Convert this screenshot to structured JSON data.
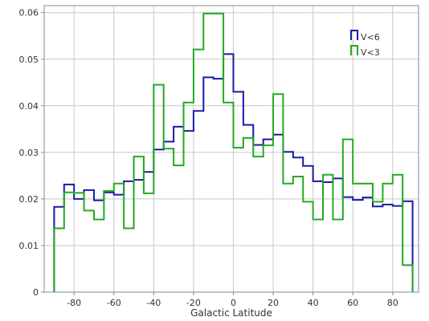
{
  "chart_data": {
    "type": "line",
    "step": "histogram",
    "xlabel": "Galactic Latitude",
    "ylabel": "",
    "xlim": [
      -95,
      93
    ],
    "ylim": [
      0,
      0.0615
    ],
    "xticks": [
      -80,
      -60,
      -40,
      -20,
      0,
      20,
      40,
      60,
      80
    ],
    "yticks": [
      0,
      0.01,
      0.02,
      0.03,
      0.04,
      0.05,
      0.06
    ],
    "xtick_labels": [
      "-80",
      "-60",
      "-40",
      "-20",
      "0",
      "20",
      "40",
      "60",
      "80"
    ],
    "ytick_labels": [
      "0",
      "0.01",
      "0.02",
      "0.03",
      "0.04",
      "0.05",
      "0.06"
    ],
    "grid": true,
    "legend_position": "top-right",
    "bin_edges": [
      -90,
      -85,
      -80,
      -75,
      -70,
      -65,
      -60,
      -55,
      -50,
      -45,
      -40,
      -35,
      -30,
      -25,
      -20,
      -15,
      -10,
      -5,
      0,
      5,
      10,
      15,
      20,
      25,
      30,
      35,
      40,
      45,
      50,
      55,
      60,
      65,
      70,
      75,
      80,
      85,
      90
    ],
    "series": [
      {
        "name": "V<6",
        "color": "#1a1aa6",
        "values": [
          0.0183,
          0.0231,
          0.02,
          0.0219,
          0.0197,
          0.0214,
          0.0209,
          0.0238,
          0.0241,
          0.0258,
          0.0306,
          0.0323,
          0.0355,
          0.0346,
          0.0389,
          0.0461,
          0.0458,
          0.0511,
          0.043,
          0.0359,
          0.0316,
          0.0328,
          0.0338,
          0.0301,
          0.0289,
          0.0271,
          0.0238,
          0.0236,
          0.0244,
          0.0204,
          0.0198,
          0.0203,
          0.0184,
          0.0188,
          0.0185,
          0.0195
        ]
      },
      {
        "name": "V<3",
        "color": "#22aa22",
        "values": [
          0.0137,
          0.0214,
          0.0213,
          0.0175,
          0.0156,
          0.0217,
          0.0233,
          0.0137,
          0.0291,
          0.0212,
          0.0445,
          0.0308,
          0.0272,
          0.0407,
          0.0521,
          0.0598,
          0.0598,
          0.0407,
          0.031,
          0.0331,
          0.0291,
          0.0315,
          0.0425,
          0.0233,
          0.0248,
          0.0194,
          0.0156,
          0.0252,
          0.0156,
          0.0328,
          0.0233,
          0.0233,
          0.0194,
          0.0233,
          0.0252,
          0.0058
        ]
      }
    ]
  }
}
